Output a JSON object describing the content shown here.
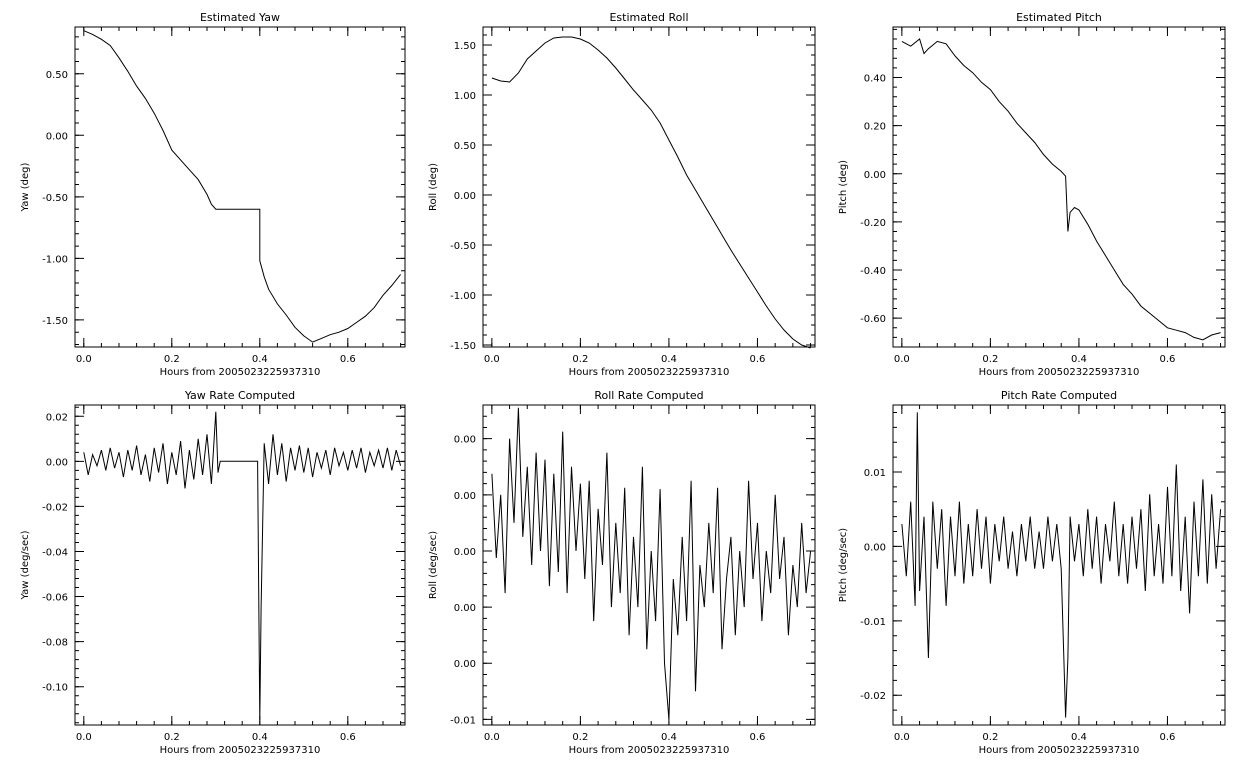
{
  "chart_data": [
    {
      "type": "line",
      "title": "Estimated Yaw",
      "xlabel": "Hours from 2005023225937310",
      "ylabel": "Yaw (deg)",
      "xlim": [
        -0.02,
        0.73
      ],
      "ylim": [
        -1.72,
        0.88
      ],
      "xticks": [
        "0.0",
        "0.2",
        "0.4",
        "0.6"
      ],
      "xtick_values": [
        0.0,
        0.2,
        0.4,
        0.6
      ],
      "yticks": [
        "0.50",
        "0.00",
        "-0.50",
        "-1.00",
        "-1.50"
      ],
      "ytick_values": [
        0.5,
        0.0,
        -0.5,
        -1.0,
        -1.5
      ],
      "grid": false,
      "series": [
        {
          "x": [
            0.0,
            0.02,
            0.04,
            0.06,
            0.08,
            0.1,
            0.12,
            0.14,
            0.16,
            0.18,
            0.2,
            0.22,
            0.24,
            0.26,
            0.28,
            0.29,
            0.3,
            0.31,
            0.33,
            0.35,
            0.37,
            0.39,
            0.4,
            0.4,
            0.41,
            0.42,
            0.44,
            0.46,
            0.48,
            0.5,
            0.52,
            0.54,
            0.56,
            0.58,
            0.6,
            0.62,
            0.64,
            0.66,
            0.68,
            0.7,
            0.72
          ],
          "y": [
            0.85,
            0.82,
            0.78,
            0.73,
            0.63,
            0.52,
            0.4,
            0.3,
            0.18,
            0.04,
            -0.12,
            -0.2,
            -0.28,
            -0.36,
            -0.48,
            -0.56,
            -0.6,
            -0.6,
            -0.6,
            -0.6,
            -0.6,
            -0.6,
            -0.6,
            -1.02,
            -1.15,
            -1.25,
            -1.37,
            -1.46,
            -1.56,
            -1.63,
            -1.68,
            -1.65,
            -1.62,
            -1.6,
            -1.57,
            -1.52,
            -1.47,
            -1.4,
            -1.3,
            -1.22,
            -1.13
          ]
        }
      ]
    },
    {
      "type": "line",
      "title": "Estimated Roll",
      "xlabel": "Hours from 2005023225937310",
      "ylabel": "Roll (deg)",
      "xlim": [
        -0.02,
        0.73
      ],
      "ylim": [
        -1.52,
        1.68
      ],
      "xticks": [
        "0.0",
        "0.2",
        "0.4",
        "0.6"
      ],
      "xtick_values": [
        0.0,
        0.2,
        0.4,
        0.6
      ],
      "yticks": [
        "1.50",
        "1.00",
        "0.50",
        "0.00",
        "-0.50",
        "-1.00",
        "-1.50"
      ],
      "ytick_values": [
        1.5,
        1.0,
        0.5,
        0.0,
        -0.5,
        -1.0,
        -1.5
      ],
      "grid": false,
      "series": [
        {
          "x": [
            0.0,
            0.02,
            0.04,
            0.06,
            0.08,
            0.1,
            0.12,
            0.14,
            0.16,
            0.18,
            0.2,
            0.22,
            0.24,
            0.26,
            0.28,
            0.3,
            0.32,
            0.34,
            0.36,
            0.38,
            0.4,
            0.42,
            0.44,
            0.46,
            0.48,
            0.5,
            0.52,
            0.54,
            0.56,
            0.58,
            0.6,
            0.62,
            0.64,
            0.66,
            0.68,
            0.7,
            0.72
          ],
          "y": [
            1.17,
            1.14,
            1.13,
            1.22,
            1.36,
            1.44,
            1.52,
            1.57,
            1.58,
            1.58,
            1.56,
            1.52,
            1.45,
            1.37,
            1.27,
            1.16,
            1.05,
            0.95,
            0.85,
            0.72,
            0.55,
            0.38,
            0.2,
            0.05,
            -0.1,
            -0.25,
            -0.4,
            -0.55,
            -0.69,
            -0.83,
            -0.97,
            -1.11,
            -1.24,
            -1.35,
            -1.44,
            -1.5,
            -1.53
          ]
        }
      ]
    },
    {
      "type": "line",
      "title": "Estimated Pitch",
      "xlabel": "Hours from 2005023225937310",
      "ylabel": "Pitch (deg)",
      "xlim": [
        -0.02,
        0.73
      ],
      "ylim": [
        -0.72,
        0.61
      ],
      "xticks": [
        "0.0",
        "0.2",
        "0.4",
        "0.6"
      ],
      "xtick_values": [
        0.0,
        0.2,
        0.4,
        0.6
      ],
      "yticks": [
        "0.40",
        "0.20",
        "0.00",
        "-0.20",
        "-0.40",
        "-0.60"
      ],
      "ytick_values": [
        0.4,
        0.2,
        0.0,
        -0.2,
        -0.4,
        -0.6
      ],
      "grid": false,
      "series": [
        {
          "x": [
            0.0,
            0.02,
            0.04,
            0.05,
            0.06,
            0.08,
            0.1,
            0.12,
            0.14,
            0.16,
            0.18,
            0.2,
            0.22,
            0.24,
            0.26,
            0.28,
            0.3,
            0.32,
            0.34,
            0.36,
            0.37,
            0.375,
            0.38,
            0.39,
            0.4,
            0.42,
            0.44,
            0.46,
            0.48,
            0.5,
            0.52,
            0.54,
            0.56,
            0.58,
            0.6,
            0.62,
            0.64,
            0.66,
            0.68,
            0.7,
            0.72
          ],
          "y": [
            0.55,
            0.53,
            0.56,
            0.5,
            0.52,
            0.55,
            0.54,
            0.49,
            0.45,
            0.42,
            0.38,
            0.35,
            0.3,
            0.26,
            0.21,
            0.17,
            0.13,
            0.08,
            0.04,
            0.01,
            -0.01,
            -0.24,
            -0.16,
            -0.14,
            -0.15,
            -0.21,
            -0.28,
            -0.34,
            -0.4,
            -0.46,
            -0.5,
            -0.55,
            -0.58,
            -0.61,
            -0.64,
            -0.65,
            -0.66,
            -0.68,
            -0.69,
            -0.67,
            -0.66
          ]
        }
      ]
    },
    {
      "type": "line",
      "title": "Yaw Rate Computed",
      "xlabel": "Hours from 2005023225937310",
      "ylabel": "Yaw (deg/sec)",
      "xlim": [
        -0.02,
        0.73
      ],
      "ylim": [
        -0.117,
        0.025
      ],
      "xticks": [
        "0.0",
        "0.2",
        "0.4",
        "0.6"
      ],
      "xtick_values": [
        0.0,
        0.2,
        0.4,
        0.6
      ],
      "yticks": [
        "0.02",
        "0.00",
        "-0.02",
        "-0.04",
        "-0.06",
        "-0.08",
        "-0.10"
      ],
      "ytick_values": [
        0.02,
        0.0,
        -0.02,
        -0.04,
        -0.06,
        -0.08,
        -0.1
      ],
      "grid": false,
      "series": [
        {
          "x": [
            0.0,
            0.01,
            0.02,
            0.03,
            0.04,
            0.05,
            0.06,
            0.07,
            0.08,
            0.09,
            0.1,
            0.11,
            0.12,
            0.13,
            0.14,
            0.15,
            0.16,
            0.17,
            0.18,
            0.19,
            0.2,
            0.21,
            0.22,
            0.23,
            0.24,
            0.25,
            0.26,
            0.27,
            0.28,
            0.29,
            0.3,
            0.305,
            0.31,
            0.33,
            0.35,
            0.37,
            0.39,
            0.395,
            0.4,
            0.403,
            0.41,
            0.42,
            0.43,
            0.44,
            0.45,
            0.46,
            0.47,
            0.48,
            0.49,
            0.5,
            0.51,
            0.52,
            0.53,
            0.54,
            0.55,
            0.56,
            0.57,
            0.58,
            0.59,
            0.6,
            0.61,
            0.62,
            0.63,
            0.64,
            0.65,
            0.66,
            0.67,
            0.68,
            0.69,
            0.7,
            0.71,
            0.72
          ],
          "y": [
            0.004,
            -0.006,
            0.003,
            -0.002,
            0.005,
            -0.004,
            0.006,
            -0.003,
            0.004,
            -0.007,
            0.005,
            -0.004,
            0.007,
            -0.006,
            0.003,
            -0.009,
            0.006,
            -0.005,
            0.008,
            -0.01,
            0.004,
            -0.006,
            0.009,
            -0.012,
            0.005,
            -0.008,
            0.01,
            -0.006,
            0.012,
            -0.01,
            0.022,
            -0.005,
            0.0,
            0.0,
            0.0,
            0.0,
            0.0,
            0.0,
            -0.115,
            -0.065,
            0.008,
            -0.01,
            0.012,
            -0.006,
            0.008,
            -0.009,
            0.006,
            -0.004,
            0.007,
            -0.005,
            0.006,
            -0.007,
            0.004,
            -0.003,
            0.005,
            -0.006,
            0.006,
            -0.002,
            0.004,
            -0.004,
            0.005,
            -0.003,
            0.006,
            -0.005,
            0.004,
            -0.002,
            0.005,
            -0.003,
            0.006,
            -0.004,
            0.005,
            -0.002
          ]
        }
      ]
    },
    {
      "type": "line",
      "title": "Roll Rate Computed",
      "xlabel": "Hours from 2005023225937310",
      "ylabel": "Roll (deg/sec)",
      "xlim": [
        -0.02,
        0.73
      ],
      "ylim": [
        -0.0164,
        0.0064
      ],
      "xticks": [
        "0.0",
        "0.2",
        "0.4",
        "0.6"
      ],
      "xtick_values": [
        0.0,
        0.2,
        0.4,
        0.6
      ],
      "yticks": [
        "0.00",
        "0.00",
        "0.00",
        "0.00",
        "0.00",
        "-0.01"
      ],
      "ytick_values": [
        0.004,
        0.0,
        -0.004,
        -0.008,
        -0.012,
        -0.016
      ],
      "grid": false,
      "series": [
        {
          "x": [
            0.0,
            0.01,
            0.02,
            0.03,
            0.04,
            0.05,
            0.06,
            0.07,
            0.08,
            0.09,
            0.1,
            0.11,
            0.12,
            0.13,
            0.14,
            0.15,
            0.16,
            0.17,
            0.18,
            0.19,
            0.2,
            0.21,
            0.22,
            0.23,
            0.24,
            0.25,
            0.26,
            0.27,
            0.28,
            0.29,
            0.3,
            0.31,
            0.32,
            0.33,
            0.34,
            0.35,
            0.36,
            0.37,
            0.38,
            0.39,
            0.4,
            0.41,
            0.42,
            0.43,
            0.44,
            0.45,
            0.46,
            0.47,
            0.48,
            0.49,
            0.5,
            0.51,
            0.52,
            0.53,
            0.54,
            0.55,
            0.56,
            0.57,
            0.58,
            0.59,
            0.6,
            0.61,
            0.62,
            0.63,
            0.64,
            0.65,
            0.66,
            0.67,
            0.68,
            0.69,
            0.7,
            0.71,
            0.72
          ],
          "y": [
            0.0015,
            -0.0045,
            0.0,
            -0.007,
            0.004,
            -0.002,
            0.0062,
            -0.003,
            0.002,
            -0.005,
            0.003,
            -0.004,
            0.0025,
            -0.0065,
            0.0015,
            -0.0055,
            0.0045,
            -0.007,
            0.002,
            -0.004,
            0.0008,
            -0.006,
            0.001,
            -0.009,
            -0.001,
            -0.005,
            0.003,
            -0.008,
            -0.002,
            -0.007,
            0.0005,
            -0.01,
            -0.003,
            -0.008,
            0.002,
            -0.011,
            -0.004,
            -0.009,
            0.0004,
            -0.012,
            -0.016,
            -0.006,
            -0.01,
            -0.003,
            -0.009,
            0.001,
            -0.014,
            -0.005,
            -0.008,
            -0.002,
            -0.007,
            0.0005,
            -0.011,
            -0.006,
            -0.003,
            -0.01,
            -0.004,
            -0.008,
            0.001,
            -0.006,
            -0.002,
            -0.009,
            -0.004,
            -0.007,
            0.0,
            -0.006,
            -0.003,
            -0.01,
            -0.005,
            -0.008,
            -0.002,
            -0.007,
            -0.004
          ]
        }
      ]
    },
    {
      "type": "line",
      "title": "Pitch Rate Computed",
      "xlabel": "Hours from 2005023225937310",
      "ylabel": "Pitch (deg/sec)",
      "xlim": [
        -0.02,
        0.73
      ],
      "ylim": [
        -0.024,
        0.019
      ],
      "xticks": [
        "0.0",
        "0.2",
        "0.4",
        "0.6"
      ],
      "xtick_values": [
        0.0,
        0.2,
        0.4,
        0.6
      ],
      "yticks": [
        "0.01",
        "0.00",
        "-0.01",
        "-0.02"
      ],
      "ytick_values": [
        0.01,
        0.0,
        -0.01,
        -0.02
      ],
      "grid": false,
      "series": [
        {
          "x": [
            0.0,
            0.01,
            0.02,
            0.03,
            0.035,
            0.04,
            0.05,
            0.06,
            0.07,
            0.08,
            0.09,
            0.1,
            0.11,
            0.12,
            0.13,
            0.14,
            0.15,
            0.16,
            0.17,
            0.18,
            0.19,
            0.2,
            0.21,
            0.22,
            0.23,
            0.24,
            0.25,
            0.26,
            0.27,
            0.28,
            0.29,
            0.3,
            0.31,
            0.32,
            0.33,
            0.34,
            0.35,
            0.36,
            0.37,
            0.375,
            0.38,
            0.39,
            0.4,
            0.41,
            0.42,
            0.43,
            0.44,
            0.45,
            0.46,
            0.47,
            0.48,
            0.49,
            0.5,
            0.51,
            0.52,
            0.53,
            0.54,
            0.55,
            0.56,
            0.57,
            0.58,
            0.59,
            0.6,
            0.61,
            0.62,
            0.63,
            0.64,
            0.65,
            0.66,
            0.67,
            0.68,
            0.69,
            0.7,
            0.71,
            0.72
          ],
          "y": [
            0.003,
            -0.004,
            0.006,
            -0.008,
            0.018,
            -0.006,
            0.004,
            -0.015,
            0.006,
            -0.003,
            0.005,
            -0.008,
            0.004,
            -0.004,
            0.006,
            -0.005,
            0.003,
            -0.004,
            0.005,
            -0.003,
            0.004,
            -0.005,
            0.003,
            -0.002,
            0.004,
            -0.003,
            0.002,
            -0.004,
            0.003,
            -0.002,
            0.004,
            -0.003,
            0.002,
            -0.003,
            0.004,
            -0.002,
            0.003,
            -0.003,
            -0.023,
            -0.015,
            0.004,
            -0.002,
            0.003,
            -0.004,
            0.005,
            -0.003,
            0.004,
            -0.005,
            0.003,
            -0.002,
            0.006,
            -0.004,
            0.003,
            -0.005,
            0.004,
            -0.003,
            0.005,
            -0.006,
            0.007,
            -0.004,
            0.003,
            -0.005,
            0.008,
            -0.004,
            0.011,
            -0.006,
            0.004,
            -0.009,
            0.006,
            -0.004,
            0.009,
            -0.005,
            0.007,
            -0.003,
            0.005
          ]
        }
      ]
    }
  ]
}
